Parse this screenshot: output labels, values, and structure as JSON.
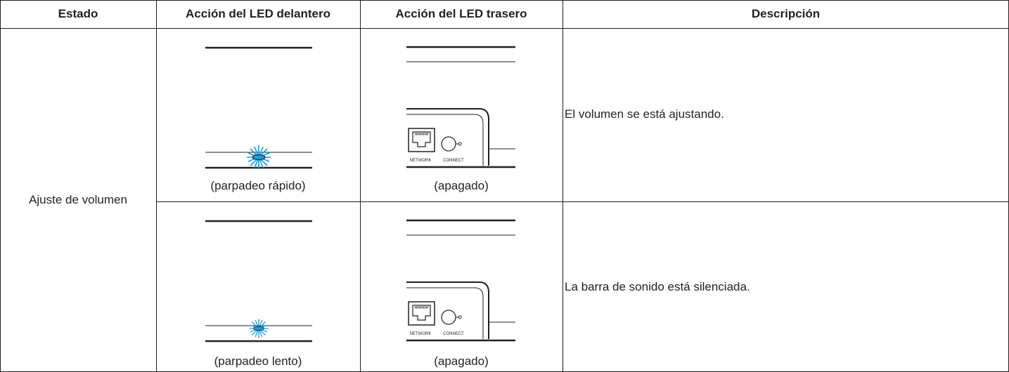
{
  "table": {
    "header": [
      "Estado",
      "Acción del LED delantero",
      "Acción del LED trasero",
      "Descripción"
    ],
    "state": "Ajuste de volumen",
    "rows": [
      {
        "front": "(parpadeo rápido)",
        "rear": "(apagado)",
        "description": "El volumen se está ajustando."
      },
      {
        "front": "(parpadeo lento)",
        "rear": "(apagado)",
        "description": "La barra de sonido está silenciada."
      }
    ]
  },
  "illustration": {
    "network": "NETWORK",
    "connect": "CONNECT"
  }
}
